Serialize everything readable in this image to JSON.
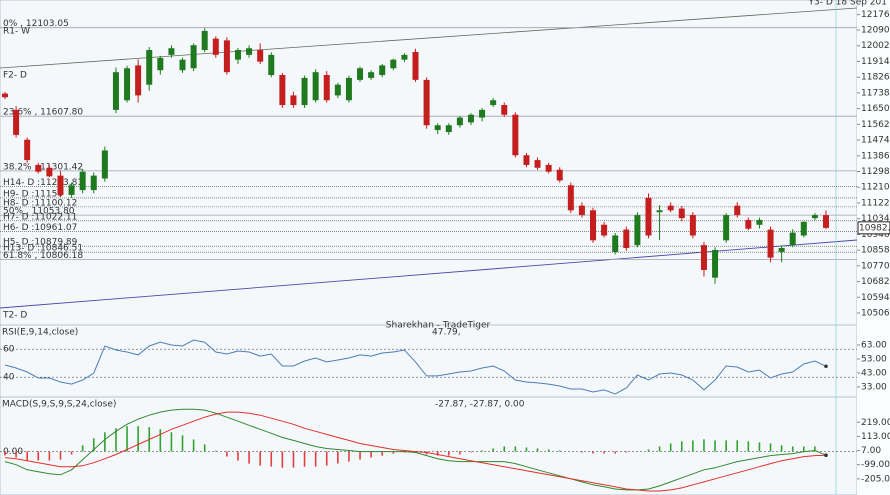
{
  "chart_data": [
    {
      "type": "candlestick",
      "corner_text": "Y3- D  18 Sep 201",
      "watermark": "Sharekhan - TradeTiger",
      "up_color": "#1f7a1f",
      "down_color": "#c41e1e",
      "ylim": [
        10439,
        12258
      ],
      "yticks": [
        {
          "value": 12176,
          "label": "12176.00"
        },
        {
          "value": 12090,
          "label": "12090.00"
        },
        {
          "value": 12002,
          "label": "12002.00"
        },
        {
          "value": 11914,
          "label": "11914.00"
        },
        {
          "value": 11826,
          "label": "11826.00"
        },
        {
          "value": 11738,
          "label": "11738.00"
        },
        {
          "value": 11650,
          "label": "11650.00"
        },
        {
          "value": 11562,
          "label": "11562.00"
        },
        {
          "value": 11474,
          "label": "11474.00"
        },
        {
          "value": 11386,
          "label": "11386.00"
        },
        {
          "value": 11298,
          "label": "11298.00"
        },
        {
          "value": 11210,
          "label": "11210.00"
        },
        {
          "value": 11122,
          "label": "11122.00"
        },
        {
          "value": 11034,
          "label": "11034.00"
        },
        {
          "value": 10946,
          "label": "10946.00"
        },
        {
          "value": 10858,
          "label": "10858.00"
        },
        {
          "value": 10770,
          "label": "10770.00"
        },
        {
          "value": 10682,
          "label": "10682.00"
        },
        {
          "value": 10594,
          "label": "10594.00"
        },
        {
          "value": 10506,
          "label": "10506.00"
        }
      ],
      "levels": [
        {
          "label": "0%    , 12103.05",
          "value": 12103.05
        },
        {
          "label": "23.6% , 11607.80",
          "value": 11607.8
        },
        {
          "label": "38.2%  , 11301.42",
          "value": 11301.42
        },
        {
          "label": "H14- D :11213.81",
          "value": 11213.81
        },
        {
          "label": "H9- D :11150",
          "value": 11150
        },
        {
          "label": "H8- D :11100.12",
          "value": 11100.12
        },
        {
          "label": "50%  , 11053.80",
          "value": 11053.8
        },
        {
          "label": "H7- D :11022.11",
          "value": 11022.11
        },
        {
          "label": "H6- D :10961.07",
          "value": 10961.07
        },
        {
          "label": "H5- D :10879.89",
          "value": 10879.89
        },
        {
          "label": "H13- D :10846.51",
          "value": 10846.51
        },
        {
          "label": "61.8% , 10806.18",
          "value": 10806.18
        }
      ],
      "level_notes": [
        "R1- W",
        "F2- D",
        "T2- D"
      ],
      "last_price": 10982.8,
      "ohlc": [
        [
          11734,
          11744,
          11704,
          11714
        ],
        [
          11643,
          11664,
          11488,
          11503
        ],
        [
          11476,
          11488,
          11347,
          11362
        ],
        [
          11335,
          11347,
          11287,
          11297
        ],
        [
          11319,
          11332,
          11266,
          11271
        ],
        [
          11275,
          11302,
          11156,
          11167
        ],
        [
          11167,
          11236,
          11151,
          11221
        ],
        [
          11194,
          11312,
          11176,
          11297
        ],
        [
          11194,
          11292,
          11176,
          11275
        ],
        [
          11259,
          11438,
          11241,
          11416
        ],
        [
          11643,
          11880,
          11624,
          11854
        ],
        [
          11697,
          11890,
          11684,
          11876
        ],
        [
          11892,
          11925,
          11684,
          11724
        ],
        [
          11784,
          11995,
          11750,
          11978
        ],
        [
          11865,
          11945,
          11840,
          11934
        ],
        [
          11951,
          12005,
          11935,
          11988
        ],
        [
          11865,
          11935,
          11850,
          11924
        ],
        [
          11876,
          12015,
          11860,
          12005
        ],
        [
          11978,
          12100,
          11965,
          12085
        ],
        [
          12042,
          12055,
          11935,
          11951
        ],
        [
          12032,
          12050,
          11840,
          11854
        ],
        [
          11924,
          11990,
          11900,
          11978
        ],
        [
          11951,
          12005,
          11935,
          11988
        ],
        [
          11978,
          12015,
          11900,
          11913
        ],
        [
          11838,
          11965,
          11825,
          11951
        ],
        [
          11838,
          11850,
          11654,
          11670
        ],
        [
          11724,
          11744,
          11654,
          11670
        ],
        [
          11670,
          11835,
          11654,
          11822
        ],
        [
          11697,
          11870,
          11684,
          11854
        ],
        [
          11838,
          11860,
          11684,
          11697
        ],
        [
          11724,
          11795,
          11709,
          11784
        ],
        [
          11697,
          11835,
          11684,
          11822
        ],
        [
          11811,
          11885,
          11800,
          11876
        ],
        [
          11822,
          11865,
          11810,
          11854
        ],
        [
          11838,
          11900,
          11825,
          11892
        ],
        [
          11876,
          11930,
          11865,
          11924
        ],
        [
          11924,
          11960,
          11910,
          11951
        ],
        [
          11967,
          11985,
          11800,
          11811
        ],
        [
          11811,
          11825,
          11538,
          11557
        ],
        [
          11530,
          11568,
          11508,
          11557
        ],
        [
          11519,
          11568,
          11503,
          11557
        ],
        [
          11557,
          11609,
          11543,
          11600
        ],
        [
          11573,
          11624,
          11558,
          11616
        ],
        [
          11600,
          11654,
          11578,
          11643
        ],
        [
          11670,
          11709,
          11659,
          11697
        ],
        [
          11670,
          11684,
          11604,
          11616
        ],
        [
          11616,
          11629,
          11377,
          11389
        ],
        [
          11389,
          11402,
          11322,
          11335
        ],
        [
          11362,
          11377,
          11307,
          11319
        ],
        [
          11335,
          11347,
          11287,
          11297
        ],
        [
          11308,
          11322,
          11236,
          11248
        ],
        [
          11221,
          11236,
          11065,
          11081
        ],
        [
          11107,
          11126,
          11040,
          11054
        ],
        [
          11081,
          11095,
          10899,
          10913
        ],
        [
          11000,
          11015,
          10929,
          10940
        ],
        [
          10848,
          10954,
          10834,
          10940
        ],
        [
          10973,
          10990,
          10854,
          10870
        ],
        [
          10886,
          11070,
          10874,
          11054
        ],
        [
          11151,
          11176,
          10924,
          10940
        ],
        [
          11070,
          11110,
          10914,
          11081
        ],
        [
          11107,
          11126,
          11070,
          11081
        ],
        [
          11091,
          11105,
          11020,
          11037
        ],
        [
          11054,
          11070,
          10924,
          10940
        ],
        [
          10886,
          10904,
          10710,
          10747
        ],
        [
          10704,
          10874,
          10670,
          10859
        ],
        [
          10913,
          11065,
          10899,
          11054
        ],
        [
          11107,
          11126,
          11040,
          11054
        ],
        [
          11027,
          11040,
          10970,
          10978
        ],
        [
          11000,
          11040,
          10979,
          11027
        ],
        [
          10973,
          10990,
          10790,
          10816
        ],
        [
          10848,
          10884,
          10790,
          10870
        ],
        [
          10886,
          10975,
          10874,
          10956
        ],
        [
          10940,
          11020,
          10929,
          11016
        ],
        [
          11037,
          11065,
          11025,
          11054
        ],
        [
          11054,
          11080,
          10975,
          10982.8
        ]
      ]
    },
    {
      "type": "line",
      "title": "RSI(E,9,14,close)",
      "readout": "47.79,",
      "color": "#4b7fb8",
      "ylim": [
        25.86,
        77.29
      ],
      "yticks": [
        {
          "value": 63,
          "label": "63.00"
        },
        {
          "value": 53,
          "label": "53.00"
        },
        {
          "value": 43,
          "label": "43.00"
        },
        {
          "value": 33,
          "label": "33.00"
        }
      ],
      "levels": [
        60,
        40
      ],
      "values": [
        48.7,
        46.6,
        43.7,
        39.4,
        39.4,
        36.6,
        35.1,
        38,
        43,
        62.3,
        59.4,
        58,
        55.9,
        62.3,
        65,
        63,
        62.3,
        66.6,
        65,
        58,
        56.6,
        58.7,
        58,
        55.1,
        56.6,
        48,
        48,
        51.6,
        53.7,
        50.9,
        52.3,
        53.7,
        55.9,
        55.1,
        57.3,
        58,
        59.4,
        50.9,
        40.9,
        40.9,
        42.3,
        43.7,
        44.4,
        46.6,
        48,
        44.4,
        38,
        36.6,
        35.9,
        35.1,
        33.7,
        31.6,
        31.6,
        29.4,
        30.9,
        28,
        32.3,
        41.6,
        38,
        42.3,
        43,
        41.6,
        38,
        30.9,
        38,
        48,
        47.3,
        43.7,
        45.1,
        39.4,
        42.3,
        43.7,
        49.4,
        51.6,
        47.79
      ]
    },
    {
      "type": "macd",
      "title": "MACD(S,9,S,9,S,24,close)",
      "readout": "-27.87, -27.87, 0.00",
      "up_color": "#2ea32e",
      "down_color": "#e2403e",
      "ylim": [
        -326.1,
        408.2
      ],
      "yticks": [
        {
          "value": 219,
          "label": "219.00"
        },
        {
          "value": 113,
          "label": "113.00"
        },
        {
          "value": 7,
          "label": "7.00"
        },
        {
          "value": -99,
          "label": "-99.00"
        },
        {
          "value": -205,
          "label": "-205.00"
        }
      ],
      "levels": [
        {
          "value": 0,
          "label": "0.00"
        }
      ],
      "histogram": [
        -30,
        -45,
        -68,
        -68,
        -68,
        -61,
        -23,
        46,
        99,
        144,
        174,
        189,
        190,
        182,
        167,
        144,
        121,
        90,
        53,
        7,
        -38,
        -68,
        -91,
        -106,
        -113,
        -122,
        -121,
        -114,
        -114,
        -106,
        -90,
        -76,
        -61,
        -46,
        -31,
        -16,
        -8,
        -7,
        -23,
        -31,
        -31,
        -22,
        -7,
        8,
        23,
        38,
        38,
        30,
        23,
        15,
        8,
        0,
        -8,
        -15,
        -15,
        -16,
        -7,
        0,
        15,
        38,
        60,
        76,
        83,
        91,
        83,
        83,
        84,
        76,
        68,
        60,
        46,
        38,
        37,
        38,
        0
      ],
      "lines": [
        {
          "color": "#2e8b2e",
          "values": [
            -76,
            -99,
            -137,
            -152,
            -167,
            -175,
            -137,
            -61,
            15,
            90,
            151,
            204,
            242,
            272,
            295,
            310,
            317,
            317,
            310,
            287,
            257,
            227,
            196,
            166,
            136,
            105,
            83,
            60,
            37,
            22,
            15,
            7,
            -1,
            -1,
            -1,
            -1,
            -1,
            -8,
            -31,
            -54,
            -69,
            -76,
            -76,
            -76,
            -76,
            -76,
            -91,
            -114,
            -137,
            -160,
            -182,
            -205,
            -228,
            -250,
            -265,
            -281,
            -288,
            -288,
            -281,
            -258,
            -228,
            -197,
            -167,
            -137,
            -122,
            -99,
            -76,
            -61,
            -46,
            -31,
            -23,
            -16,
            -1,
            7,
            -27.87
          ]
        },
        {
          "color": "#e0302a",
          "values": [
            -46,
            -54,
            -69,
            -84,
            -99,
            -114,
            -114,
            -107,
            -84,
            -54,
            -23,
            15,
            52,
            90,
            128,
            166,
            196,
            227,
            257,
            280,
            295,
            295,
            287,
            272,
            249,
            227,
            204,
            174,
            151,
            128,
            105,
            83,
            60,
            45,
            30,
            15,
            7,
            -1,
            -8,
            -23,
            -38,
            -54,
            -69,
            -84,
            -99,
            -114,
            -129,
            -144,
            -160,
            -175,
            -190,
            -205,
            -220,
            -235,
            -250,
            -265,
            -281,
            -288,
            -296,
            -296,
            -288,
            -273,
            -250,
            -228,
            -205,
            -182,
            -160,
            -137,
            -114,
            -91,
            -69,
            -54,
            -38,
            -31,
            -27.87
          ]
        }
      ]
    }
  ]
}
